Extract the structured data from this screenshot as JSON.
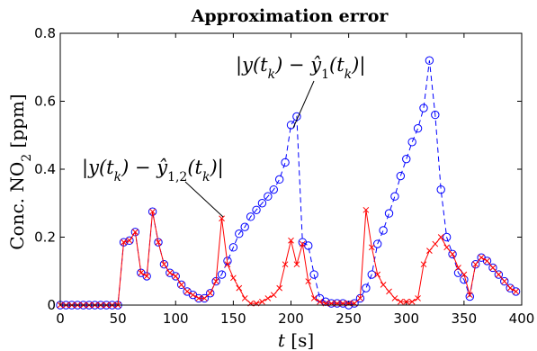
{
  "chart_data": {
    "type": "line",
    "title": "Approximation error",
    "xlabel": "t [s]",
    "ylabel": "Conc. NO2 [ppm]",
    "xlim": [
      0,
      400
    ],
    "ylim": [
      0,
      0.8
    ],
    "xticks": [
      "0",
      "50",
      "100",
      "150",
      "200",
      "250",
      "300",
      "350",
      "400"
    ],
    "yticks": [
      "0",
      "0.2",
      "0.4",
      "0.6",
      "0.8"
    ],
    "grid": false,
    "series": [
      {
        "name": "|y(t_k) − ŷ1(t_k)|",
        "color": "#0000ff",
        "line_style": "dashed",
        "marker": "circle",
        "points": [
          [
            0,
            0
          ],
          [
            5,
            0
          ],
          [
            10,
            0
          ],
          [
            15,
            0
          ],
          [
            20,
            0
          ],
          [
            25,
            0
          ],
          [
            30,
            0
          ],
          [
            35,
            0
          ],
          [
            40,
            0
          ],
          [
            45,
            0
          ],
          [
            50,
            0
          ],
          [
            55,
            0.185
          ],
          [
            60,
            0.19
          ],
          [
            65,
            0.215
          ],
          [
            70,
            0.095
          ],
          [
            75,
            0.085
          ],
          [
            80,
            0.275
          ],
          [
            85,
            0.185
          ],
          [
            90,
            0.12
          ],
          [
            95,
            0.095
          ],
          [
            100,
            0.085
          ],
          [
            105,
            0.06
          ],
          [
            110,
            0.04
          ],
          [
            115,
            0.03
          ],
          [
            120,
            0.02
          ],
          [
            125,
            0.02
          ],
          [
            130,
            0.035
          ],
          [
            135,
            0.07
          ],
          [
            140,
            0.09
          ],
          [
            145,
            0.13
          ],
          [
            150,
            0.17
          ],
          [
            155,
            0.21
          ],
          [
            160,
            0.23
          ],
          [
            165,
            0.26
          ],
          [
            170,
            0.28
          ],
          [
            175,
            0.3
          ],
          [
            180,
            0.32
          ],
          [
            185,
            0.34
          ],
          [
            190,
            0.37
          ],
          [
            195,
            0.42
          ],
          [
            200,
            0.53
          ],
          [
            205,
            0.555
          ],
          [
            210,
            0.185
          ],
          [
            215,
            0.175
          ],
          [
            220,
            0.09
          ],
          [
            225,
            0.02
          ],
          [
            230,
            0.01
          ],
          [
            235,
            0.005
          ],
          [
            240,
            0.005
          ],
          [
            245,
            0.005
          ],
          [
            250,
            0
          ],
          [
            255,
            0.005
          ],
          [
            260,
            0.02
          ],
          [
            265,
            0.05
          ],
          [
            270,
            0.09
          ],
          [
            275,
            0.18
          ],
          [
            280,
            0.22
          ],
          [
            285,
            0.27
          ],
          [
            290,
            0.32
          ],
          [
            295,
            0.38
          ],
          [
            300,
            0.43
          ],
          [
            305,
            0.48
          ],
          [
            310,
            0.52
          ],
          [
            315,
            0.58
          ],
          [
            320,
            0.72
          ],
          [
            325,
            0.56
          ],
          [
            330,
            0.34
          ],
          [
            335,
            0.2
          ],
          [
            340,
            0.15
          ],
          [
            345,
            0.095
          ],
          [
            350,
            0.075
          ],
          [
            355,
            0.025
          ],
          [
            360,
            0.12
          ],
          [
            365,
            0.14
          ],
          [
            370,
            0.13
          ],
          [
            375,
            0.11
          ],
          [
            380,
            0.09
          ],
          [
            385,
            0.07
          ],
          [
            390,
            0.05
          ],
          [
            395,
            0.04
          ]
        ]
      },
      {
        "name": "|y(t_k) − ŷ1,2(t_k)|",
        "color": "#ff0000",
        "line_style": "solid",
        "marker": "x",
        "points": [
          [
            0,
            0
          ],
          [
            5,
            0
          ],
          [
            10,
            0
          ],
          [
            15,
            0
          ],
          [
            20,
            0
          ],
          [
            25,
            0
          ],
          [
            30,
            0
          ],
          [
            35,
            0
          ],
          [
            40,
            0
          ],
          [
            45,
            0
          ],
          [
            50,
            0
          ],
          [
            55,
            0.185
          ],
          [
            60,
            0.19
          ],
          [
            65,
            0.215
          ],
          [
            70,
            0.095
          ],
          [
            75,
            0.085
          ],
          [
            80,
            0.275
          ],
          [
            85,
            0.185
          ],
          [
            90,
            0.12
          ],
          [
            95,
            0.095
          ],
          [
            100,
            0.085
          ],
          [
            105,
            0.06
          ],
          [
            110,
            0.04
          ],
          [
            115,
            0.03
          ],
          [
            120,
            0.02
          ],
          [
            125,
            0.02
          ],
          [
            130,
            0.035
          ],
          [
            135,
            0.07
          ],
          [
            140,
            0.255
          ],
          [
            145,
            0.12
          ],
          [
            150,
            0.08
          ],
          [
            155,
            0.05
          ],
          [
            160,
            0.02
          ],
          [
            165,
            0.005
          ],
          [
            170,
            0.005
          ],
          [
            175,
            0.01
          ],
          [
            180,
            0.02
          ],
          [
            185,
            0.03
          ],
          [
            190,
            0.05
          ],
          [
            195,
            0.12
          ],
          [
            200,
            0.19
          ],
          [
            205,
            0.12
          ],
          [
            210,
            0.18
          ],
          [
            215,
            0.07
          ],
          [
            220,
            0.02
          ],
          [
            225,
            0.01
          ],
          [
            230,
            0.005
          ],
          [
            235,
            0.005
          ],
          [
            240,
            0.005
          ],
          [
            245,
            0.005
          ],
          [
            250,
            0.005
          ],
          [
            255,
            0.005
          ],
          [
            260,
            0.02
          ],
          [
            265,
            0.28
          ],
          [
            270,
            0.17
          ],
          [
            275,
            0.09
          ],
          [
            280,
            0.06
          ],
          [
            285,
            0.04
          ],
          [
            290,
            0.02
          ],
          [
            295,
            0.01
          ],
          [
            300,
            0.01
          ],
          [
            305,
            0.01
          ],
          [
            310,
            0.02
          ],
          [
            315,
            0.12
          ],
          [
            320,
            0.16
          ],
          [
            325,
            0.18
          ],
          [
            330,
            0.2
          ],
          [
            335,
            0.17
          ],
          [
            340,
            0.15
          ],
          [
            345,
            0.11
          ],
          [
            350,
            0.09
          ],
          [
            355,
            0.03
          ],
          [
            360,
            0.12
          ],
          [
            365,
            0.14
          ],
          [
            370,
            0.13
          ],
          [
            375,
            0.11
          ],
          [
            380,
            0.09
          ],
          [
            385,
            0.07
          ],
          [
            390,
            0.05
          ],
          [
            395,
            0.04
          ]
        ]
      }
    ],
    "annotations": [
      {
        "label": "|y(t_k) − ŷ1(t_k)|",
        "target": [
          200,
          0.555
        ],
        "placement": "upper-right"
      },
      {
        "label": "|y(t_k) − ŷ1,2(t_k)|",
        "target": [
          140,
          0.255
        ],
        "placement": "upper-left"
      }
    ]
  }
}
